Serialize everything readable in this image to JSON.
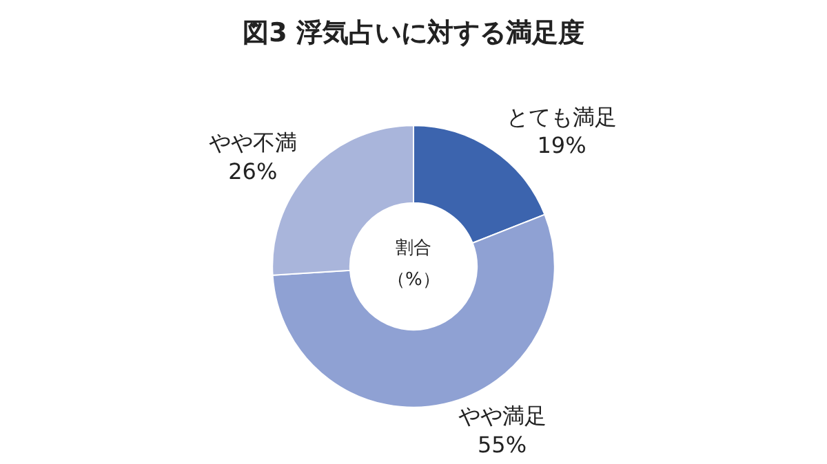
{
  "chart_data": {
    "type": "donut",
    "title": "図3 浮気占いに対する満足度",
    "categories": [
      "とても満足",
      "やや満足",
      "やや不満"
    ],
    "values": [
      19,
      55,
      26
    ],
    "value_labels": [
      "19%",
      "55%",
      "26%"
    ],
    "colors": [
      "#3c64ae",
      "#8fa1d3",
      "#a9b5db"
    ],
    "annotations": [
      "割合",
      "（%）"
    ],
    "legend": false
  }
}
